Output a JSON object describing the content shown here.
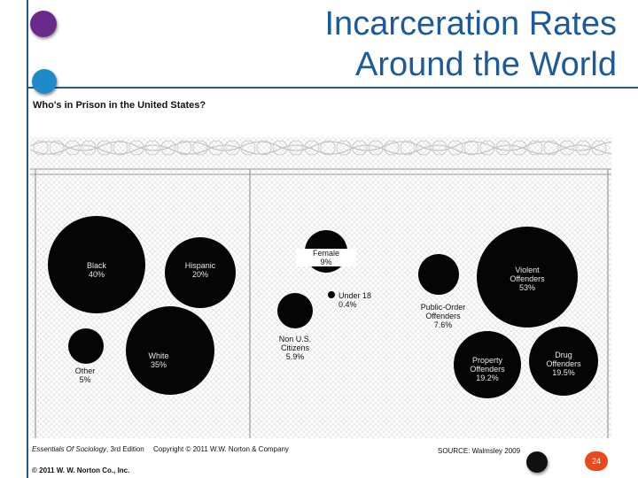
{
  "slide": {
    "title_line1": "Incarceration Rates",
    "title_line2": "Around the World",
    "accent_color": "#1c5a9a",
    "dot_colors": [
      "#6a2a8c",
      "#1f8ac9",
      "#111111"
    ]
  },
  "figure": {
    "title": "Who's in Prison in the United States?",
    "groups": [
      {
        "label": "Black\n40%",
        "share_pct": 40
      },
      {
        "label": "Hispanic\n20%",
        "share_pct": 20
      },
      {
        "label": "Other\n5%",
        "share_pct": 5
      },
      {
        "label": "White\n35%",
        "share_pct": 35
      },
      {
        "label": "Female\n9%",
        "share_pct": 9
      },
      {
        "label": "Under 18\n0.4%",
        "share_pct": 0.4
      },
      {
        "label": "Non U.S.\nCitizens\n5.9%",
        "share_pct": 5.9
      },
      {
        "label": "Violent\nOffenders\n53%",
        "share_pct": 53
      },
      {
        "label": "Public-Order\nOffenders\n7.6%",
        "share_pct": 7.6
      },
      {
        "label": "Property\nOffenders\n19.2%",
        "share_pct": 19.2
      },
      {
        "label": "Drug\nOffenders\n19.5%",
        "share_pct": 19.5
      }
    ]
  },
  "footer": {
    "book_title": "Essentials Of Sociology",
    "edition": ", 3rd Edition",
    "copyright_line": "Copyright © 2011 W.W. Norton & Company",
    "source": "SOURCE: Walmsley 2009",
    "publisher": "© 2011 W. W. Norton Co., Inc.",
    "page_number": "24",
    "page_badge_color": "#e84a1e"
  }
}
